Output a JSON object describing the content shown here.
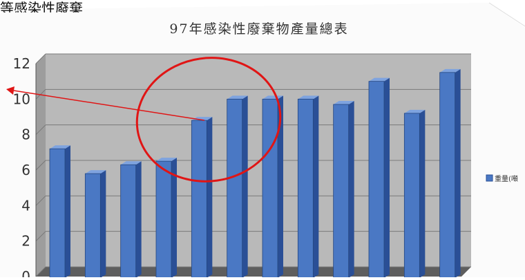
{
  "caption_fragment": "等感染性廢棄",
  "colors": {
    "bar_front": "#4a78c4",
    "bar_side": "#2a4f96",
    "bar_top": "#7ea3df",
    "wall": "#b9b9b9",
    "floor": "#5e5e5e",
    "annotation": "#e01515"
  },
  "chart_data": {
    "type": "bar",
    "title": "97年感染性廢棄物產量總表",
    "ylim": [
      0,
      12
    ],
    "yticks": [
      "0",
      "2",
      "4",
      "6",
      "8",
      "10",
      "12"
    ],
    "categories": [
      "",
      "",
      "",
      "",
      "",
      "",
      "",
      "",
      "",
      "",
      "",
      ""
    ],
    "series": [
      {
        "name": "重量(噸",
        "values": [
          7.2,
          5.8,
          6.3,
          6.5,
          8.8,
          10.0,
          10.0,
          10.0,
          9.7,
          11.0,
          9.2,
          11.5
        ]
      }
    ],
    "grid": true,
    "legend": "right",
    "style": "3d"
  }
}
